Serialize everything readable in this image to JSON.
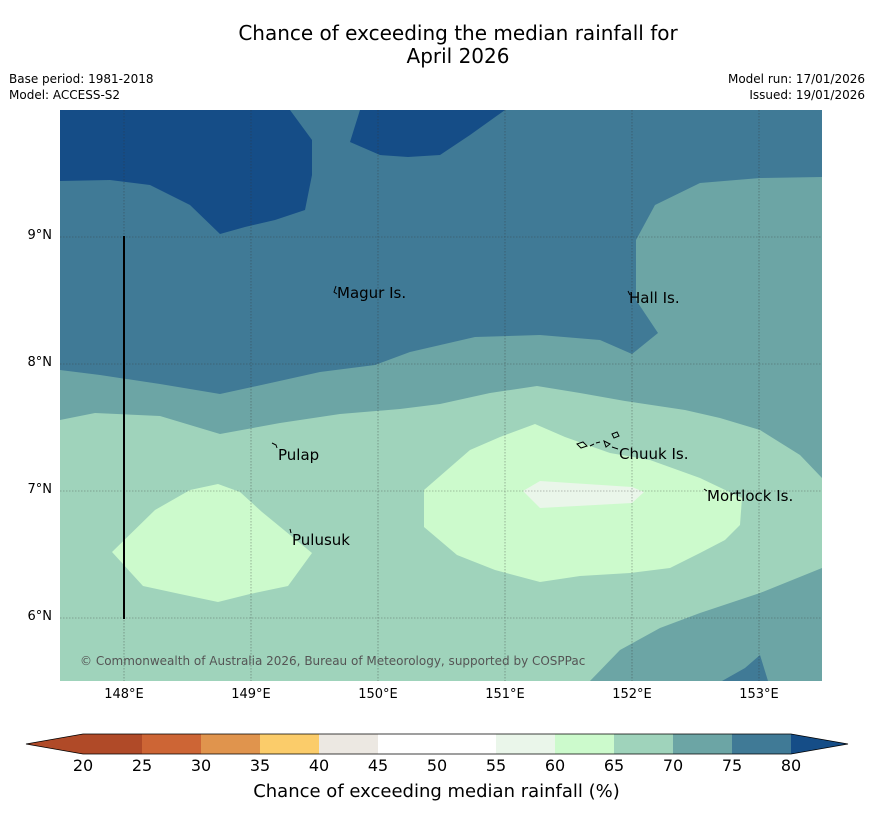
{
  "title_line1": "Chance of exceeding the median rainfall for",
  "title_line2": "April 2026",
  "base_period": "Base period: 1981-2018",
  "model": "Model: ACCESS-S2",
  "model_run": "Model run: 17/01/2026",
  "issued": "Issued: 19/01/2026",
  "copyright": "© Commonwealth of Australia 2026, Bureau of Meteorology, supported by COSPPac",
  "colors": {
    "c20": "#b04a28",
    "c25": "#cd6535",
    "c30": "#e0944d",
    "c35": "#fbcc6a",
    "c40": "#ece8e2",
    "c45": "#ffffff",
    "c50": "#ffffff",
    "c55": "#eaf6ea",
    "c60": "#ccfacc",
    "c65": "#9fd3bb",
    "c70": "#6ca5a5",
    "c75": "#407a96",
    "c80": "#154d87"
  },
  "place_labels": {
    "magur": "Magur Is.",
    "hall": "Hall Is.",
    "pulap": "Pulap",
    "chuuk": "Chuuk Is.",
    "mortlock": "Mortlock Is.",
    "pulusuk": "Pulusuk"
  },
  "lat_labels": [
    "9°N",
    "8°N",
    "7°N",
    "6°N"
  ],
  "lon_labels": [
    "148°E",
    "149°E",
    "150°E",
    "151°E",
    "152°E",
    "153°E"
  ],
  "colorbar": {
    "labels": [
      "20",
      "25",
      "30",
      "35",
      "40",
      "45",
      "50",
      "55",
      "60",
      "65",
      "70",
      "75",
      "80"
    ],
    "title": "Chance of exceeding median rainfall (%)"
  }
}
